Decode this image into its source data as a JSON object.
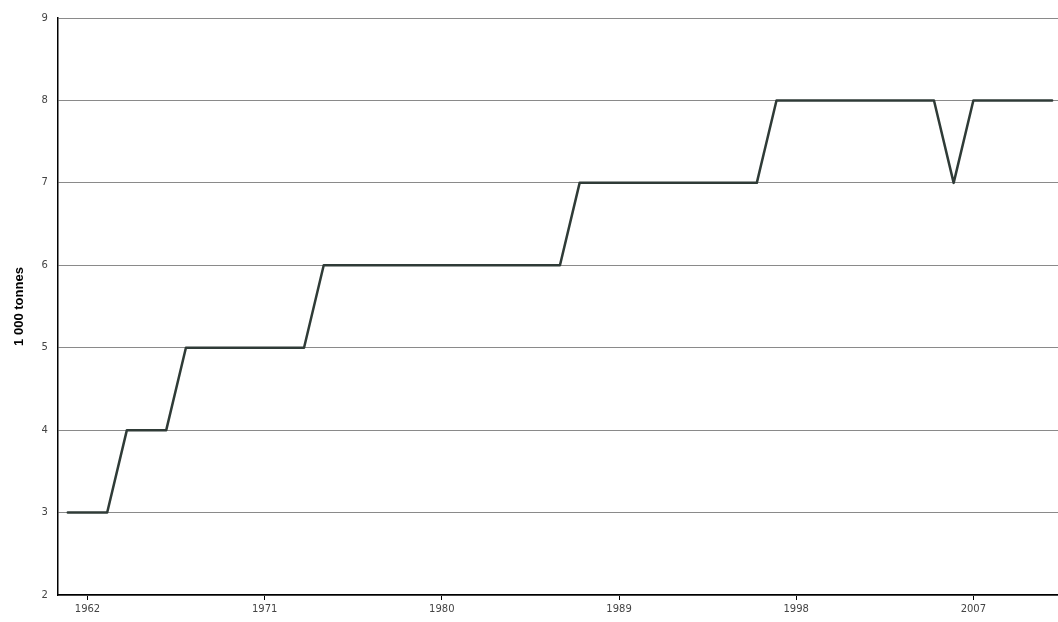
{
  "chart_data": {
    "type": "line",
    "ylabel": "1 000 tonnes",
    "x": [
      1961,
      1962,
      1963,
      1964,
      1965,
      1966,
      1967,
      1968,
      1969,
      1970,
      1971,
      1972,
      1973,
      1974,
      1975,
      1976,
      1977,
      1978,
      1979,
      1980,
      1981,
      1982,
      1983,
      1984,
      1985,
      1986,
      1987,
      1988,
      1989,
      1990,
      1991,
      1992,
      1993,
      1994,
      1995,
      1996,
      1997,
      1998,
      1999,
      2000,
      2001,
      2002,
      2003,
      2004,
      2005,
      2006,
      2007,
      2008,
      2009,
      2010,
      2011
    ],
    "series": [
      {
        "color": "#2f3b37",
        "values": [
          3,
          3,
          3,
          4,
          4,
          4,
          5,
          5,
          5,
          5,
          5,
          5,
          5,
          6,
          6,
          6,
          6,
          6,
          6,
          6,
          6,
          6,
          6,
          6,
          6,
          6,
          7,
          7,
          7,
          7,
          7,
          7,
          7,
          7,
          7,
          7,
          8,
          8,
          8,
          8,
          8,
          8,
          8,
          8,
          8,
          7,
          8,
          8,
          8,
          8,
          8
        ]
      }
    ],
    "xlim": [
      1960.5,
      2011.3
    ],
    "xticks": [
      1962,
      1971,
      1980,
      1989,
      1998,
      2007
    ],
    "ylim": [
      2,
      9
    ],
    "yticks": [
      2,
      3,
      4,
      5,
      6,
      7,
      8,
      9
    ],
    "grid": "y",
    "legend": false,
    "marker": "none",
    "line_style": "solid"
  }
}
